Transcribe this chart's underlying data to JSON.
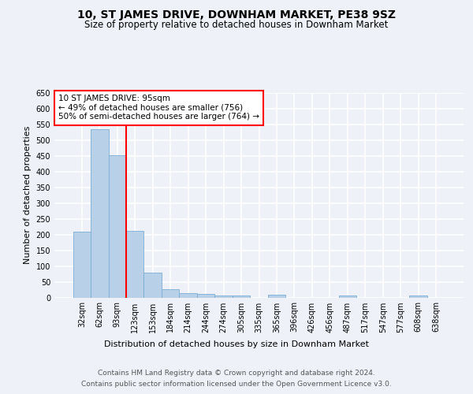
{
  "title": "10, ST JAMES DRIVE, DOWNHAM MARKET, PE38 9SZ",
  "subtitle": "Size of property relative to detached houses in Downham Market",
  "xlabel": "Distribution of detached houses by size in Downham Market",
  "ylabel": "Number of detached properties",
  "footer_line1": "Contains HM Land Registry data © Crown copyright and database right 2024.",
  "footer_line2": "Contains public sector information licensed under the Open Government Licence v3.0.",
  "categories": [
    "32sqm",
    "62sqm",
    "93sqm",
    "123sqm",
    "153sqm",
    "184sqm",
    "214sqm",
    "244sqm",
    "274sqm",
    "305sqm",
    "335sqm",
    "365sqm",
    "396sqm",
    "426sqm",
    "456sqm",
    "487sqm",
    "517sqm",
    "547sqm",
    "577sqm",
    "608sqm",
    "638sqm"
  ],
  "values": [
    210,
    533,
    452,
    212,
    78,
    26,
    14,
    11,
    7,
    7,
    0,
    8,
    0,
    0,
    0,
    7,
    0,
    0,
    0,
    7,
    0
  ],
  "bar_color": "#b8d0e8",
  "bar_edge_color": "#7aadd4",
  "red_line_x": 2.5,
  "annotation_box_text": "10 ST JAMES DRIVE: 95sqm\n← 49% of detached houses are smaller (756)\n50% of semi-detached houses are larger (764) →",
  "ylim": [
    0,
    650
  ],
  "yticks": [
    0,
    50,
    100,
    150,
    200,
    250,
    300,
    350,
    400,
    450,
    500,
    550,
    600,
    650
  ],
  "bg_color": "#eef2f8",
  "plot_bg_color": "#eef2f8",
  "grid_color": "#ffffff",
  "title_fontsize": 10,
  "subtitle_fontsize": 8.5,
  "label_fontsize": 8,
  "tick_fontsize": 7,
  "footer_fontsize": 6.5,
  "ann_fontsize": 7.5
}
